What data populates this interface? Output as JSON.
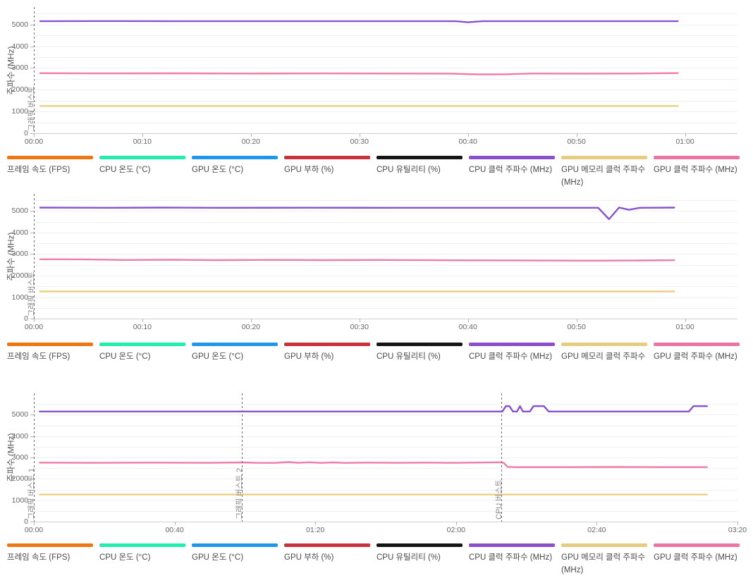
{
  "page": {
    "background": "#ffffff"
  },
  "legend": {
    "items": [
      {
        "label": "프레임 속도 (FPS)",
        "color": "#EE7613"
      },
      {
        "label": "CPU 온도 (°C)",
        "color": "#21EDAD"
      },
      {
        "label": "GPU 온도 (°C)",
        "color": "#1E96EC"
      },
      {
        "label": "GPU 부하 (%)",
        "color": "#C8333B"
      },
      {
        "label": "CPU 유틸리티 (%)",
        "color": "#151515"
      },
      {
        "label": "CPU 클럭 주파수 (MHz)",
        "color": "#8B50C9"
      },
      {
        "label": "GPU 메모리 클럭 주파수 (MHz)",
        "color": "#E6CC80"
      },
      {
        "label": "GPU 클럭 주파수 (MHz)",
        "color": "#EC74A2"
      }
    ]
  },
  "chart_data": [
    {
      "type": "line",
      "title": "",
      "ylabel": "주파수 (MHz)",
      "ylim": [
        0,
        5800
      ],
      "grid": "on",
      "legend_position": "bottom",
      "x_unit": "mm:ss",
      "xlim_seconds": [
        0,
        3890
      ],
      "xticks": [
        {
          "t": 0,
          "label": "00:00"
        },
        {
          "t": 600,
          "label": "00:10"
        },
        {
          "t": 1200,
          "label": "00:20"
        },
        {
          "t": 1800,
          "label": "00:30"
        },
        {
          "t": 2400,
          "label": "00:40"
        },
        {
          "t": 3000,
          "label": "00:50"
        },
        {
          "t": 3600,
          "label": "01:00"
        }
      ],
      "yticks": [
        {
          "v": 0,
          "label": "0"
        },
        {
          "v": 1000,
          "label": "1000"
        },
        {
          "v": 2000,
          "label": "2000"
        },
        {
          "v": 3000,
          "label": "3000"
        },
        {
          "v": 4000,
          "label": "4000"
        },
        {
          "v": 5000,
          "label": "5000"
        }
      ],
      "annotations": [
        {
          "t": 0,
          "label": "그래픽 버스트"
        }
      ],
      "series": [
        {
          "name": "CPU 클럭 주파수 (MHz)",
          "color": "#8752CC",
          "points": [
            [
              35,
              5150
            ],
            [
              500,
              5155
            ],
            [
              1000,
              5150
            ],
            [
              1500,
              5150
            ],
            [
              2000,
              5150
            ],
            [
              2330,
              5150
            ],
            [
              2400,
              5100
            ],
            [
              2480,
              5150
            ],
            [
              3000,
              5150
            ],
            [
              3560,
              5150
            ]
          ]
        },
        {
          "name": "GPU 클럭 주파수 (MHz)",
          "color": "#EE7BA8",
          "points": [
            [
              35,
              2760
            ],
            [
              400,
              2750
            ],
            [
              800,
              2755
            ],
            [
              1200,
              2745
            ],
            [
              1600,
              2750
            ],
            [
              2000,
              2745
            ],
            [
              2300,
              2740
            ],
            [
              2450,
              2705
            ],
            [
              2600,
              2710
            ],
            [
              2750,
              2745
            ],
            [
              3000,
              2740
            ],
            [
              3300,
              2745
            ],
            [
              3560,
              2765
            ]
          ]
        },
        {
          "name": "GPU 메모리 클럭 주파수 (MHz)",
          "color": "#EBD083",
          "points": [
            [
              35,
              1255
            ],
            [
              3560,
              1255
            ]
          ]
        }
      ]
    },
    {
      "type": "line",
      "title": "",
      "ylabel": "주파수 (MHz)",
      "ylim": [
        0,
        5800
      ],
      "grid": "on",
      "legend_position": "bottom",
      "x_unit": "mm:ss",
      "xlim_seconds": [
        0,
        3890
      ],
      "xticks": [
        {
          "t": 0,
          "label": "00:00"
        },
        {
          "t": 600,
          "label": "00:10"
        },
        {
          "t": 1200,
          "label": "00:20"
        },
        {
          "t": 1800,
          "label": "00:30"
        },
        {
          "t": 2400,
          "label": "00:40"
        },
        {
          "t": 3000,
          "label": "00:50"
        },
        {
          "t": 3600,
          "label": "01:00"
        }
      ],
      "yticks": [
        {
          "v": 0,
          "label": "0"
        },
        {
          "v": 1000,
          "label": "1000"
        },
        {
          "v": 2000,
          "label": "2000"
        },
        {
          "v": 3000,
          "label": "3000"
        },
        {
          "v": 4000,
          "label": "4000"
        },
        {
          "v": 5000,
          "label": "5000"
        }
      ],
      "annotations": [
        {
          "t": 0,
          "label": "그래픽 버스트"
        }
      ],
      "series": [
        {
          "name": "CPU 클럭 주파수 (MHz)",
          "color": "#8752CC",
          "points": [
            [
              35,
              5160
            ],
            [
              400,
              5150
            ],
            [
              700,
              5160
            ],
            [
              1000,
              5150
            ],
            [
              1500,
              5155
            ],
            [
              2000,
              5150
            ],
            [
              2500,
              5150
            ],
            [
              3000,
              5150
            ],
            [
              3120,
              5150
            ],
            [
              3180,
              4620
            ],
            [
              3235,
              5165
            ],
            [
              3290,
              5060
            ],
            [
              3350,
              5150
            ],
            [
              3540,
              5160
            ]
          ]
        },
        {
          "name": "GPU 클럭 주파수 (MHz)",
          "color": "#EE7BA8",
          "points": [
            [
              35,
              2760
            ],
            [
              250,
              2755
            ],
            [
              500,
              2725
            ],
            [
              750,
              2735
            ],
            [
              1000,
              2720
            ],
            [
              1300,
              2730
            ],
            [
              1600,
              2720
            ],
            [
              1900,
              2725
            ],
            [
              2200,
              2715
            ],
            [
              2500,
              2710
            ],
            [
              2800,
              2700
            ],
            [
              3100,
              2695
            ],
            [
              3350,
              2705
            ],
            [
              3540,
              2715
            ]
          ]
        },
        {
          "name": "GPU 메모리 클럭 주파수 (MHz)",
          "color": "#EBD083",
          "points": [
            [
              35,
              1260
            ],
            [
              3540,
              1260
            ]
          ]
        }
      ]
    },
    {
      "type": "line",
      "title": "",
      "ylabel": "주파수 (MHz)",
      "ylim": [
        0,
        6000
      ],
      "grid": "on",
      "legend_position": "bottom",
      "x_unit": "mm:ss",
      "xlim_seconds": [
        0,
        12000
      ],
      "xticks": [
        {
          "t": 0,
          "label": "00:00"
        },
        {
          "t": 2400,
          "label": "00:40"
        },
        {
          "t": 4800,
          "label": "01:20"
        },
        {
          "t": 7200,
          "label": "02:00"
        },
        {
          "t": 9600,
          "label": "02:40"
        },
        {
          "t": 12000,
          "label": "03:20"
        }
      ],
      "yticks": [
        {
          "v": 0,
          "label": "0"
        },
        {
          "v": 1000,
          "label": "1000"
        },
        {
          "v": 2000,
          "label": "2000"
        },
        {
          "v": 3000,
          "label": "3000"
        },
        {
          "v": 4000,
          "label": "4000"
        },
        {
          "v": 5000,
          "label": "5000"
        }
      ],
      "annotations": [
        {
          "t": 0,
          "label": "그래픽 버스트 1"
        },
        {
          "t": 3547,
          "label": "그래픽 버스트 2"
        },
        {
          "t": 7973,
          "label": "CPU 버스트"
        }
      ],
      "series": [
        {
          "name": "CPU 클럭 주파수 (MHz)",
          "color": "#8752CC",
          "points": [
            [
              100,
              5150
            ],
            [
              4000,
              5150
            ],
            [
              7990,
              5150
            ],
            [
              8050,
              5400
            ],
            [
              8110,
              5400
            ],
            [
              8170,
              5150
            ],
            [
              8240,
              5150
            ],
            [
              8290,
              5400
            ],
            [
              8340,
              5150
            ],
            [
              8460,
              5150
            ],
            [
              8520,
              5400
            ],
            [
              8700,
              5400
            ],
            [
              8780,
              5150
            ],
            [
              11170,
              5150
            ],
            [
              11250,
              5400
            ],
            [
              11480,
              5400
            ]
          ]
        },
        {
          "name": "GPU 클럭 주파수 (MHz)",
          "color": "#EE7BA8",
          "points": [
            [
              100,
              2760
            ],
            [
              1000,
              2750
            ],
            [
              2000,
              2760
            ],
            [
              3000,
              2750
            ],
            [
              3550,
              2770
            ],
            [
              3800,
              2750
            ],
            [
              4100,
              2745
            ],
            [
              4350,
              2785
            ],
            [
              4500,
              2750
            ],
            [
              4700,
              2775
            ],
            [
              4900,
              2745
            ],
            [
              5100,
              2770
            ],
            [
              5300,
              2745
            ],
            [
              5700,
              2760
            ],
            [
              6200,
              2750
            ],
            [
              6700,
              2760
            ],
            [
              7200,
              2750
            ],
            [
              7700,
              2765
            ],
            [
              7950,
              2775
            ],
            [
              8010,
              2750
            ],
            [
              8080,
              2560
            ],
            [
              8200,
              2550
            ],
            [
              9000,
              2550
            ],
            [
              10000,
              2555
            ],
            [
              11000,
              2550
            ],
            [
              11480,
              2550
            ]
          ]
        },
        {
          "name": "GPU 메모리 클럭 주파수 (MHz)",
          "color": "#EBD083",
          "points": [
            [
              100,
              1265
            ],
            [
              11480,
              1265
            ]
          ]
        }
      ]
    }
  ]
}
